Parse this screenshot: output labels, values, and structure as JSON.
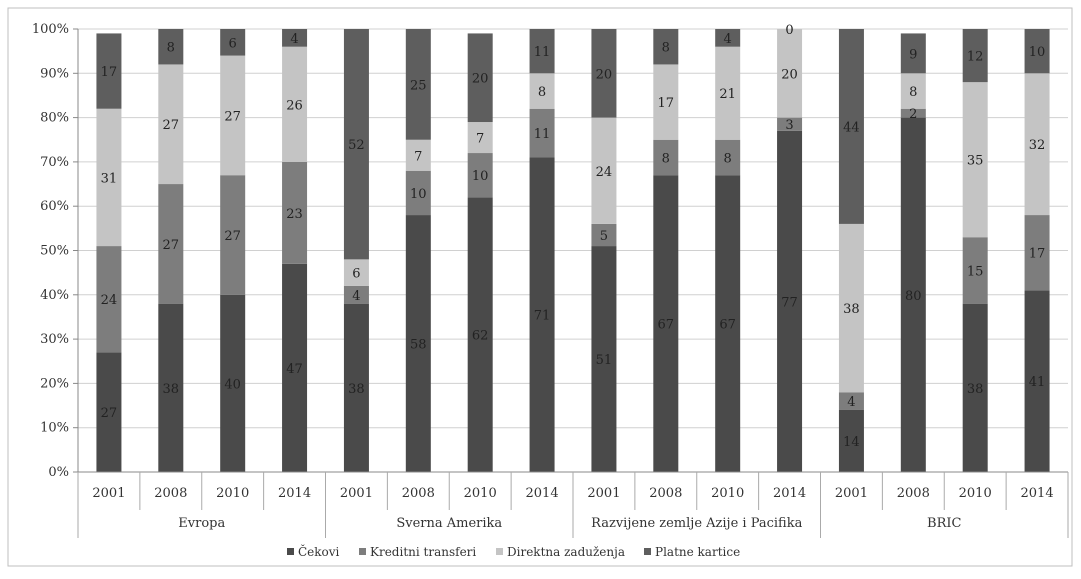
{
  "chart_data": {
    "type": "bar",
    "stacked": true,
    "percent": true,
    "groups": [
      {
        "name": "Evropa",
        "years": [
          "2001",
          "2008",
          "2010",
          "2014"
        ]
      },
      {
        "name": "Sverna Amerika",
        "years": [
          "2001",
          "2008",
          "2010",
          "2014"
        ]
      },
      {
        "name": "Razvijene zemlje Azije i Pacifika",
        "years": [
          "2001",
          "2008",
          "2010",
          "2014"
        ]
      },
      {
        "name": "BRIC",
        "years": [
          "2001",
          "2008",
          "2010",
          "2014"
        ]
      }
    ],
    "series": [
      {
        "name": "Čekovi",
        "color": "#4a4a4a",
        "values": [
          27,
          38,
          40,
          47,
          38,
          58,
          62,
          71,
          51,
          67,
          67,
          77,
          14,
          80,
          38,
          41
        ]
      },
      {
        "name": "Kreditni transferi",
        "color": "#7d7d7d",
        "values": [
          24,
          27,
          27,
          23,
          4,
          10,
          10,
          11,
          5,
          8,
          8,
          3,
          4,
          2,
          15,
          17
        ]
      },
      {
        "name": "Direktna zaduženja",
        "color": "#c4c4c4",
        "values": [
          31,
          27,
          27,
          26,
          6,
          7,
          7,
          8,
          24,
          17,
          21,
          20,
          38,
          8,
          35,
          32
        ]
      },
      {
        "name": "Platne kartice",
        "color": "#5e5e5e",
        "values": [
          17,
          8,
          6,
          4,
          52,
          25,
          20,
          11,
          20,
          8,
          4,
          0,
          44,
          9,
          12,
          10
        ]
      }
    ],
    "yticks": [
      "0%",
      "10%",
      "20%",
      "30%",
      "40%",
      "50%",
      "60%",
      "70%",
      "80%",
      "90%",
      "100%"
    ],
    "ylim": [
      0,
      100
    ],
    "grid": true,
    "legend_position": "bottom"
  }
}
